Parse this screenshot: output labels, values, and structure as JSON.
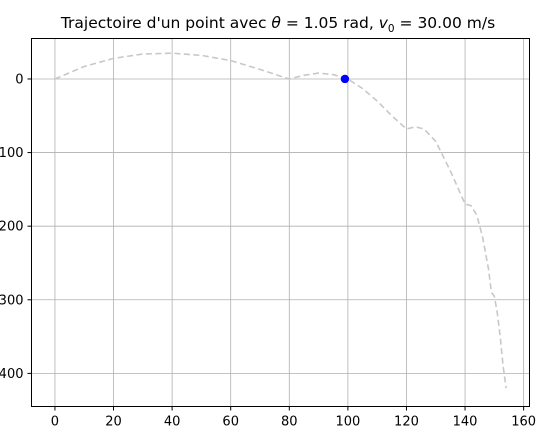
{
  "chart_data": {
    "type": "line",
    "title": "Trajectoire d'un point avec θ = 1.05 rad, v₀ = 30.00 m/s",
    "title_parts": {
      "prefix": "Trajectoire d'un point avec ",
      "theta_symbol": "θ",
      "theta_value": " = 1.05 rad, ",
      "v_symbol": "v",
      "v_subscript": "0",
      "v_value": " = 30.00 m/s"
    },
    "xlabel": "",
    "ylabel": "",
    "xlim": [
      -8,
      162
    ],
    "ylim": [
      -445,
      55
    ],
    "xticks": [
      0,
      20,
      40,
      60,
      80,
      100,
      120,
      140,
      160
    ],
    "yticks": [
      0,
      -100,
      -200,
      -300,
      -400
    ],
    "ytick_labels": [
      "0",
      "−100",
      "−200",
      "−300",
      "−400"
    ],
    "grid": true,
    "series": [
      {
        "style": "dashed",
        "color": "#c8c8c8",
        "x": [
          0,
          10,
          20,
          30,
          40,
          50,
          60,
          70,
          80,
          85,
          90,
          95,
          100,
          105,
          110,
          115,
          120,
          123,
          126,
          130,
          135,
          140,
          142,
          144,
          146,
          148,
          149,
          150,
          151,
          152,
          153,
          154
        ],
        "y": [
          0,
          17,
          28,
          34,
          35,
          32,
          25,
          13,
          0,
          5,
          8,
          6,
          0,
          -13,
          -30,
          -50,
          -68,
          -65,
          -68,
          -85,
          -125,
          -170,
          -172,
          -185,
          -215,
          -258,
          -290,
          -295,
          -318,
          -350,
          -390,
          -420
        ]
      }
    ],
    "markers": [
      {
        "x": 99,
        "y": 0,
        "color": "#0000ff"
      }
    ]
  }
}
